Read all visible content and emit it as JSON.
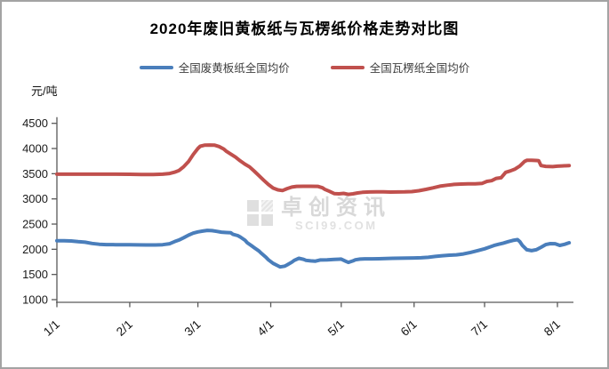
{
  "watermark": {
    "name": "卓创资讯",
    "domain": "SCI99.COM"
  },
  "chart_data": {
    "type": "line",
    "title": "2020年废旧黄板纸与瓦楞纸价格走势对比图",
    "y_unit": "元/吨",
    "xlabel": "",
    "ylabel": "元/吨",
    "ylim": [
      1000,
      4500
    ],
    "y_tick_step": 500,
    "y_ticks": [
      1000,
      1500,
      2000,
      2500,
      3000,
      3500,
      4000,
      4500
    ],
    "xlim_days": [
      0,
      218
    ],
    "x_ticks": [
      {
        "label": "1/1",
        "day": 0
      },
      {
        "label": "2/1",
        "day": 31
      },
      {
        "label": "3/1",
        "day": 60
      },
      {
        "label": "4/1",
        "day": 91
      },
      {
        "label": "5/1",
        "day": 121
      },
      {
        "label": "6/1",
        "day": 152
      },
      {
        "label": "7/1",
        "day": 182
      },
      {
        "label": "8/1",
        "day": 213
      }
    ],
    "grid": false,
    "legend_position": "top",
    "axis_color": "#595959",
    "series": [
      {
        "name": "全国废黄板纸全国均价",
        "color": "#4a7ebb",
        "points": [
          [
            0,
            2170
          ],
          [
            3,
            2170
          ],
          [
            6,
            2165
          ],
          [
            9,
            2150
          ],
          [
            12,
            2140
          ],
          [
            15,
            2115
          ],
          [
            18,
            2100
          ],
          [
            21,
            2092
          ],
          [
            25,
            2090
          ],
          [
            28,
            2090
          ],
          [
            31,
            2090
          ],
          [
            34,
            2087
          ],
          [
            38,
            2085
          ],
          [
            42,
            2085
          ],
          [
            45,
            2090
          ],
          [
            48,
            2110
          ],
          [
            50,
            2150
          ],
          [
            52,
            2185
          ],
          [
            54,
            2230
          ],
          [
            56,
            2280
          ],
          [
            58,
            2320
          ],
          [
            60,
            2345
          ],
          [
            62,
            2360
          ],
          [
            64,
            2375
          ],
          [
            66,
            2370
          ],
          [
            68,
            2355
          ],
          [
            70,
            2340
          ],
          [
            72,
            2332
          ],
          [
            74,
            2328
          ],
          [
            75,
            2295
          ],
          [
            77,
            2270
          ],
          [
            78,
            2245
          ],
          [
            80,
            2180
          ],
          [
            81,
            2130
          ],
          [
            83,
            2065
          ],
          [
            84,
            2030
          ],
          [
            86,
            1965
          ],
          [
            87,
            1920
          ],
          [
            89,
            1840
          ],
          [
            90,
            1790
          ],
          [
            92,
            1720
          ],
          [
            94,
            1672
          ],
          [
            95,
            1650
          ],
          [
            97,
            1665
          ],
          [
            98,
            1690
          ],
          [
            100,
            1745
          ],
          [
            101,
            1780
          ],
          [
            103,
            1820
          ],
          [
            105,
            1800
          ],
          [
            106,
            1780
          ],
          [
            108,
            1770
          ],
          [
            110,
            1765
          ],
          [
            112,
            1788
          ],
          [
            115,
            1790
          ],
          [
            118,
            1800
          ],
          [
            121,
            1805
          ],
          [
            123,
            1760
          ],
          [
            124,
            1740
          ],
          [
            126,
            1770
          ],
          [
            127,
            1790
          ],
          [
            129,
            1805
          ],
          [
            131,
            1810
          ],
          [
            134,
            1810
          ],
          [
            137,
            1812
          ],
          [
            140,
            1815
          ],
          [
            143,
            1820
          ],
          [
            146,
            1822
          ],
          [
            149,
            1825
          ],
          [
            152,
            1828
          ],
          [
            155,
            1832
          ],
          [
            158,
            1840
          ],
          [
            161,
            1858
          ],
          [
            164,
            1872
          ],
          [
            167,
            1882
          ],
          [
            170,
            1890
          ],
          [
            173,
            1908
          ],
          [
            176,
            1938
          ],
          [
            179,
            1972
          ],
          [
            182,
            2010
          ],
          [
            184,
            2042
          ],
          [
            186,
            2075
          ],
          [
            188,
            2100
          ],
          [
            190,
            2122
          ],
          [
            192,
            2150
          ],
          [
            194,
            2175
          ],
          [
            196,
            2192
          ],
          [
            197,
            2150
          ],
          [
            198,
            2080
          ],
          [
            200,
            1990
          ],
          [
            202,
            1972
          ],
          [
            204,
            1990
          ],
          [
            206,
            2040
          ],
          [
            208,
            2092
          ],
          [
            210,
            2112
          ],
          [
            212,
            2110
          ],
          [
            214,
            2076
          ],
          [
            216,
            2098
          ],
          [
            218,
            2130
          ]
        ]
      },
      {
        "name": "全国瓦楞纸全国均价",
        "color": "#c0504d",
        "points": [
          [
            0,
            3490
          ],
          [
            5,
            3490
          ],
          [
            10,
            3490
          ],
          [
            15,
            3490
          ],
          [
            20,
            3490
          ],
          [
            25,
            3490
          ],
          [
            31,
            3488
          ],
          [
            36,
            3486
          ],
          [
            41,
            3486
          ],
          [
            45,
            3490
          ],
          [
            48,
            3505
          ],
          [
            50,
            3530
          ],
          [
            52,
            3565
          ],
          [
            54,
            3640
          ],
          [
            56,
            3740
          ],
          [
            58,
            3880
          ],
          [
            60,
            4000
          ],
          [
            61,
            4045
          ],
          [
            63,
            4068
          ],
          [
            65,
            4070
          ],
          [
            67,
            4068
          ],
          [
            69,
            4040
          ],
          [
            71,
            3990
          ],
          [
            72,
            3950
          ],
          [
            74,
            3890
          ],
          [
            76,
            3830
          ],
          [
            78,
            3755
          ],
          [
            80,
            3690
          ],
          [
            82,
            3635
          ],
          [
            84,
            3550
          ],
          [
            86,
            3460
          ],
          [
            88,
            3370
          ],
          [
            90,
            3285
          ],
          [
            92,
            3215
          ],
          [
            94,
            3180
          ],
          [
            96,
            3165
          ],
          [
            98,
            3205
          ],
          [
            100,
            3235
          ],
          [
            102,
            3248
          ],
          [
            105,
            3250
          ],
          [
            108,
            3250
          ],
          [
            111,
            3248
          ],
          [
            113,
            3220
          ],
          [
            114,
            3190
          ],
          [
            116,
            3150
          ],
          [
            118,
            3105
          ],
          [
            120,
            3100
          ],
          [
            122,
            3110
          ],
          [
            124,
            3090
          ],
          [
            126,
            3100
          ],
          [
            128,
            3118
          ],
          [
            130,
            3130
          ],
          [
            133,
            3138
          ],
          [
            136,
            3140
          ],
          [
            139,
            3140
          ],
          [
            142,
            3136
          ],
          [
            145,
            3138
          ],
          [
            148,
            3140
          ],
          [
            151,
            3145
          ],
          [
            154,
            3162
          ],
          [
            157,
            3188
          ],
          [
            160,
            3218
          ],
          [
            163,
            3252
          ],
          [
            166,
            3272
          ],
          [
            169,
            3288
          ],
          [
            172,
            3295
          ],
          [
            175,
            3300
          ],
          [
            178,
            3300
          ],
          [
            181,
            3308
          ],
          [
            183,
            3348
          ],
          [
            185,
            3362
          ],
          [
            187,
            3408
          ],
          [
            189,
            3420
          ],
          [
            191,
            3528
          ],
          [
            193,
            3555
          ],
          [
            195,
            3592
          ],
          [
            197,
            3652
          ],
          [
            199,
            3742
          ],
          [
            200,
            3765
          ],
          [
            202,
            3765
          ],
          [
            204,
            3762
          ],
          [
            205,
            3758
          ],
          [
            206,
            3662
          ],
          [
            208,
            3645
          ],
          [
            211,
            3640
          ],
          [
            213,
            3650
          ],
          [
            215,
            3655
          ],
          [
            218,
            3662
          ]
        ]
      }
    ]
  }
}
